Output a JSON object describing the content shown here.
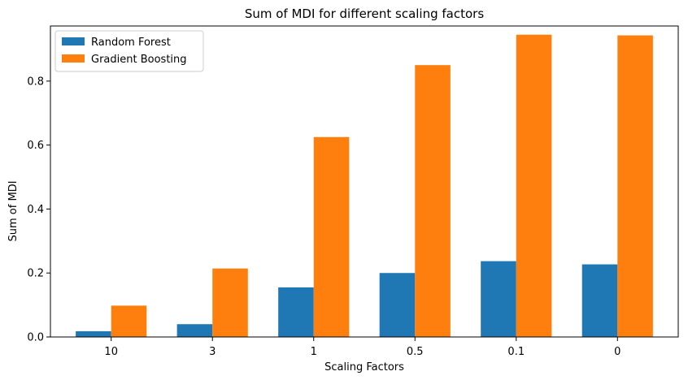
{
  "chart_data": {
    "type": "bar",
    "title": "Sum of MDI for different scaling factors",
    "xlabel": "Scaling Factors",
    "ylabel": "Sum of MDI",
    "categories": [
      "10",
      "3",
      "1",
      "0.5",
      "0.1",
      "0"
    ],
    "series": [
      {
        "name": "Random Forest",
        "color": "#1f77b4",
        "values": [
          0.018,
          0.04,
          0.155,
          0.2,
          0.237,
          0.227
        ]
      },
      {
        "name": "Gradient Boosting",
        "color": "#ff7f0e",
        "values": [
          0.098,
          0.214,
          0.625,
          0.85,
          0.945,
          0.943
        ]
      }
    ],
    "ylim": [
      0,
      0.9723
    ],
    "yticks": [
      0.0,
      0.2,
      0.4,
      0.6,
      0.8
    ],
    "ytick_labels": [
      "0.0",
      "0.2",
      "0.4",
      "0.6",
      "0.8"
    ],
    "grid": false,
    "legend": "top-left"
  }
}
